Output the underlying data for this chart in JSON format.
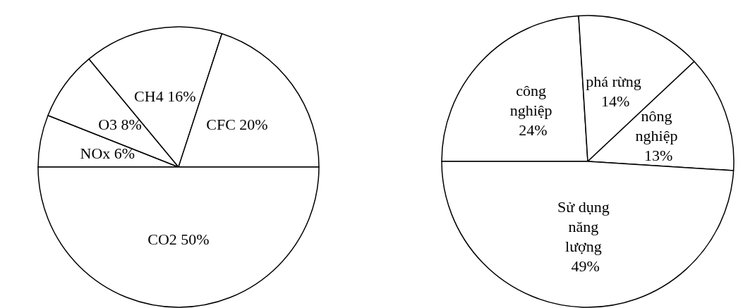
{
  "chart_data": [
    {
      "type": "pie",
      "categories": [
        "NOx",
        "O3",
        "CH4",
        "CFC",
        "CO2"
      ],
      "values": [
        6,
        8,
        16,
        20,
        50
      ],
      "value_labels": [
        "6%",
        "8%",
        "16%",
        "20%",
        "50%"
      ],
      "colors": [
        "#ffffff",
        "#ffffff",
        "#ffffff",
        "#ffffff",
        "#ffffff"
      ],
      "legend": false
    },
    {
      "type": "pie",
      "categories": [
        "công nghiệp",
        "phá rừng",
        "nông nghiệp",
        "Sử dụng năng lượng"
      ],
      "values": [
        24,
        14,
        13,
        49
      ],
      "value_labels": [
        "24%",
        "14%",
        "13%",
        "49%"
      ],
      "colors": [
        "#ffffff",
        "#ffffff",
        "#ffffff",
        "#ffffff"
      ],
      "legend": false
    }
  ]
}
